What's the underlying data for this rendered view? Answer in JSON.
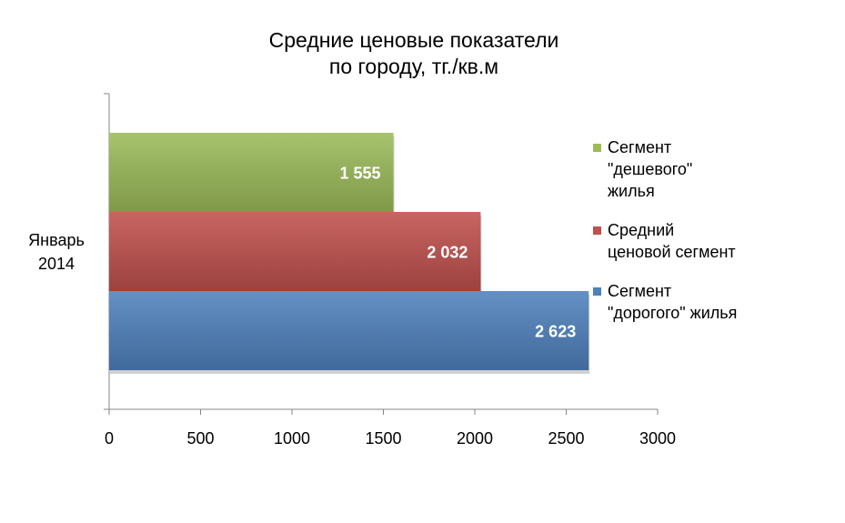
{
  "chart_data": {
    "type": "bar",
    "orientation": "horizontal",
    "title": "Средние ценовые  показатели по городу,  тг./кв.м",
    "title_lines": [
      "Средние ценовые  показатели",
      "по городу,  тг./кв.м"
    ],
    "categories": [
      "Январь 2014"
    ],
    "category_label_lines": [
      "Январь",
      "2014"
    ],
    "series": [
      {
        "name": "Сегмент \"дешевого\" жилья",
        "legend_lines": "Сегмент\n\"дешевого\"\nжилья",
        "values": [
          1555
        ],
        "label": "1 555",
        "color": "#9bbb59"
      },
      {
        "name": "Средний ценовой сегмент",
        "legend_lines": "Средний\nценовой сегмент",
        "values": [
          2032
        ],
        "label": "2 032",
        "color": "#c0504d"
      },
      {
        "name": "Сегмент \"дорогого\" жилья",
        "legend_lines": "Сегмент\n\"дорогого\" жилья",
        "values": [
          2623
        ],
        "label": "2 623",
        "color": "#4f81bd"
      }
    ],
    "xlim": [
      0,
      3000
    ],
    "xticks": [
      0,
      500,
      1000,
      1500,
      2000,
      2500,
      3000
    ],
    "xtick_labels": [
      "0",
      "500",
      "1000",
      "1500",
      "2000",
      "2500",
      "3000"
    ],
    "grid": false,
    "legend_position": "right",
    "xlabel": "",
    "ylabel": ""
  }
}
